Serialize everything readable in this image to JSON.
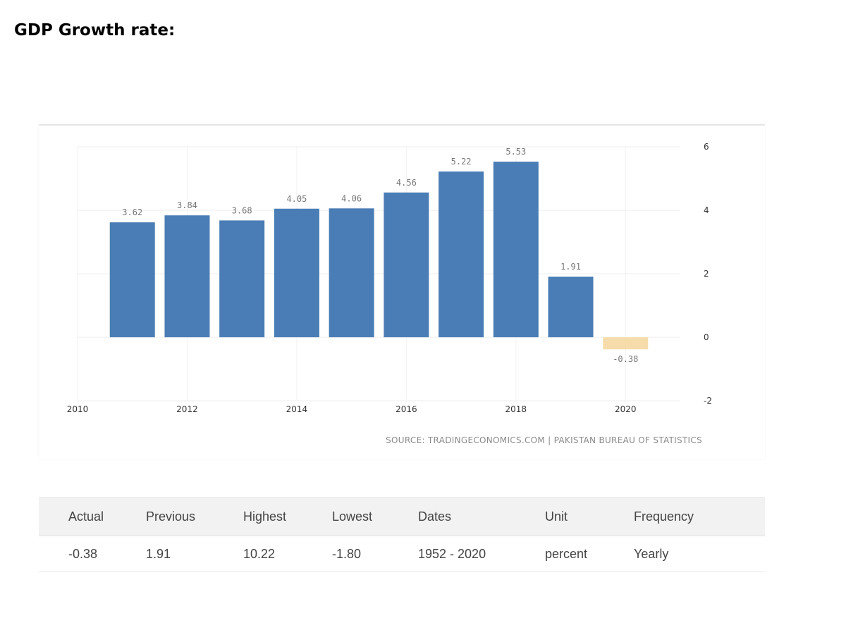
{
  "page": {
    "title": "GDP Growth rate:"
  },
  "chart_data": {
    "type": "bar",
    "x": [
      2011,
      2012,
      2013,
      2014,
      2015,
      2016,
      2017,
      2018,
      2019,
      2020
    ],
    "values": [
      3.62,
      3.84,
      3.68,
      4.05,
      4.06,
      4.56,
      5.22,
      5.53,
      1.91,
      -0.38
    ],
    "value_labels": [
      "3.62",
      "3.84",
      "3.68",
      "4.05",
      "4.06",
      "4.56",
      "5.22",
      "5.53",
      "1.91",
      "-0.38"
    ],
    "x_ticks": [
      "2010",
      "2012",
      "2014",
      "2016",
      "2018",
      "2020"
    ],
    "y_ticks": [
      "6",
      "4",
      "2",
      "0",
      "-2"
    ],
    "xlim": [
      2010,
      2021
    ],
    "ylim": [
      -2,
      6
    ],
    "y_axis_position": "right",
    "grid": true,
    "bar_color": "#4a7db5",
    "forecast_bar_color": "#f5dcaa",
    "source": "SOURCE: TRADINGECONOMICS.COM | PAKISTAN BUREAU OF STATISTICS"
  },
  "table": {
    "headers": [
      "Actual",
      "Previous",
      "Highest",
      "Lowest",
      "Dates",
      "Unit",
      "Frequency"
    ],
    "rows": [
      [
        "-0.38",
        "1.91",
        "10.22",
        "-1.80",
        "1952 - 2020",
        "percent",
        "Yearly"
      ]
    ]
  }
}
